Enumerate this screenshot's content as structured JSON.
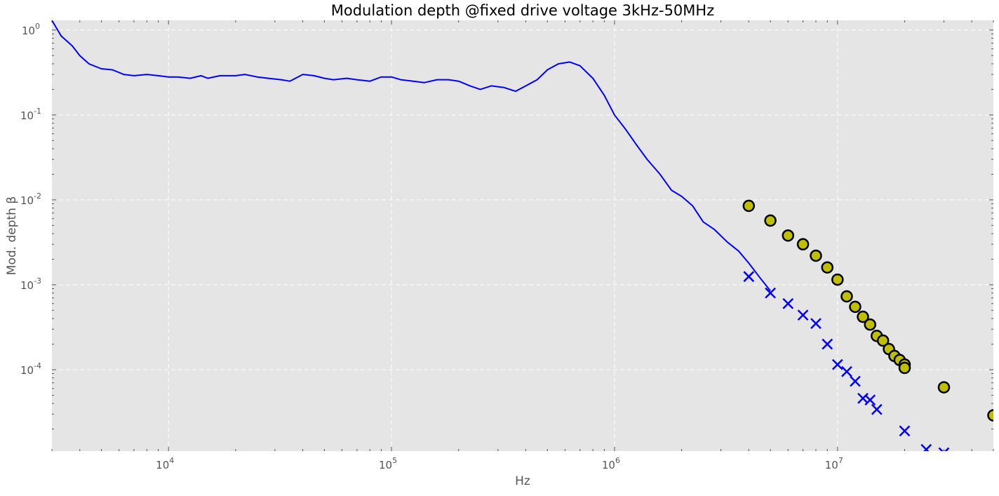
{
  "chart_data": {
    "type": "line",
    "title": "Modulation depth @fixed drive voltage 3kHz-50MHz",
    "xlabel": "Hz",
    "ylabel": "Mod. depth β",
    "x_scale": "log",
    "y_scale": "log",
    "xlim": [
      3000,
      50000000
    ],
    "ylim": [
      1.1e-05,
      1.3
    ],
    "grid": true,
    "style": "ggplot",
    "colors": {
      "background": "#e5e5e5",
      "grid": "#ffffff",
      "line": "#0000ff",
      "circle_fill": "#bfbf00",
      "circle_edge": "#000000",
      "cross": "#0000ff"
    },
    "x_ticks": [
      {
        "base": "10",
        "exp": "4",
        "value": 10000
      },
      {
        "base": "10",
        "exp": "5",
        "value": 100000
      },
      {
        "base": "10",
        "exp": "6",
        "value": 1000000
      },
      {
        "base": "10",
        "exp": "7",
        "value": 10000000
      }
    ],
    "y_ticks": [
      {
        "base": "10",
        "exp": "0",
        "value": 1
      },
      {
        "base": "10",
        "exp": "-1",
        "value": 0.1
      },
      {
        "base": "10",
        "exp": "-2",
        "value": 0.01
      },
      {
        "base": "10",
        "exp": "-3",
        "value": 0.001
      },
      {
        "base": "10",
        "exp": "-4",
        "value": 0.0001
      }
    ],
    "series": [
      {
        "kind": "line",
        "x": [
          3000,
          3300,
          3700,
          4000,
          4400,
          5000,
          5600,
          6300,
          7000,
          8000,
          9000,
          10000,
          11000,
          12500,
          14000,
          15000,
          17000,
          20000,
          22000,
          25000,
          28000,
          32000,
          35000,
          40000,
          45000,
          50000,
          55000,
          63000,
          70000,
          80000,
          90000,
          100000,
          110000,
          125000,
          140000,
          160000,
          180000,
          200000,
          225000,
          250000,
          280000,
          320000,
          360000,
          400000,
          450000,
          500000,
          560000,
          630000,
          700000,
          800000,
          900000,
          1000000,
          1120000,
          1250000,
          1400000,
          1600000,
          1800000,
          2000000,
          2240000,
          2500000,
          2800000,
          3200000,
          3600000,
          4000000,
          4500000,
          5000000
        ],
        "y": [
          1.3,
          0.85,
          0.65,
          0.5,
          0.4,
          0.35,
          0.34,
          0.3,
          0.29,
          0.3,
          0.29,
          0.28,
          0.28,
          0.27,
          0.29,
          0.27,
          0.29,
          0.29,
          0.3,
          0.28,
          0.27,
          0.26,
          0.25,
          0.3,
          0.29,
          0.27,
          0.26,
          0.27,
          0.26,
          0.25,
          0.28,
          0.28,
          0.26,
          0.25,
          0.24,
          0.26,
          0.26,
          0.25,
          0.22,
          0.2,
          0.22,
          0.21,
          0.19,
          0.22,
          0.26,
          0.34,
          0.4,
          0.42,
          0.38,
          0.27,
          0.17,
          0.1,
          0.068,
          0.045,
          0.03,
          0.02,
          0.013,
          0.011,
          0.0085,
          0.0055,
          0.0045,
          0.0032,
          0.0025,
          0.0018,
          0.0012,
          0.00085
        ]
      },
      {
        "kind": "scatter-circle",
        "x": [
          4000000,
          5000000,
          6000000,
          7000000,
          8000000,
          9000000,
          10000000,
          11000000,
          12000000,
          13000000,
          14000000,
          15000000,
          16000000,
          17000000,
          18000000,
          19000000,
          20000000,
          20000000,
          30000000,
          50000000
        ],
        "y": [
          0.0085,
          0.0057,
          0.0038,
          0.003,
          0.0022,
          0.0016,
          0.00115,
          0.00073,
          0.00055,
          0.00042,
          0.00034,
          0.00025,
          0.00022,
          0.000175,
          0.000145,
          0.00013,
          0.000115,
          0.000105,
          6.2e-05,
          2.9e-05
        ]
      },
      {
        "kind": "scatter-cross",
        "x": [
          4000000,
          5000000,
          6000000,
          7000000,
          8000000,
          9000000,
          10000000,
          11000000,
          12000000,
          13000000,
          14000000,
          15000000,
          20000000,
          25000000,
          30000000
        ],
        "y": [
          0.00125,
          0.0008,
          0.0006,
          0.00044,
          0.00035,
          0.0002,
          0.000115,
          9.5e-05,
          7.3e-05,
          4.6e-05,
          4.4e-05,
          3.4e-05,
          1.9e-05,
          1.15e-05,
          1.05e-05
        ]
      }
    ]
  }
}
